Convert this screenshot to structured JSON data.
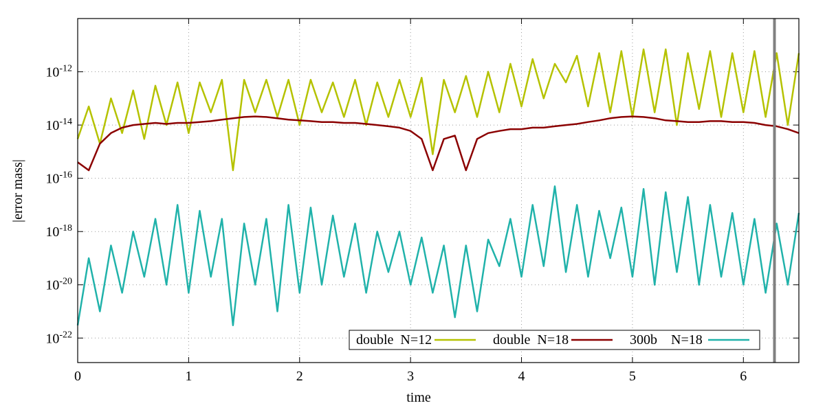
{
  "chart_data": {
    "type": "line",
    "xlabel": "time",
    "ylabel": "|error mass|",
    "log_y": true,
    "grid": true,
    "legend": "lower right",
    "xlim": [
      0,
      6.5
    ],
    "xticks": [
      0,
      1,
      2,
      3,
      4,
      5,
      6
    ],
    "ylim": [
      1.2e-23,
      1e-10
    ],
    "yticks": [
      {
        "value": 1e-12,
        "label": "10",
        "exponent": "-12"
      },
      {
        "value": 1e-14,
        "label": "10",
        "exponent": "-14"
      },
      {
        "value": 1e-16,
        "label": "10",
        "exponent": "-16"
      },
      {
        "value": 1e-18,
        "label": "10",
        "exponent": "-18"
      },
      {
        "value": 1e-20,
        "label": "10",
        "exponent": "-20"
      },
      {
        "value": 1e-22,
        "label": "10",
        "exponent": "-22"
      }
    ],
    "vline": {
      "x": 6.28,
      "color": "#808080"
    },
    "x": [
      0,
      0.1,
      0.2,
      0.3,
      0.4,
      0.5,
      0.6,
      0.7,
      0.8,
      0.9,
      1,
      1.1,
      1.2,
      1.3,
      1.4,
      1.5,
      1.6,
      1.7,
      1.8,
      1.9,
      2,
      2.1,
      2.2,
      2.3,
      2.4,
      2.5,
      2.6,
      2.7,
      2.8,
      2.9,
      3,
      3.1,
      3.2,
      3.3,
      3.4,
      3.5,
      3.6,
      3.7,
      3.8,
      3.9,
      4,
      4.1,
      4.2,
      4.3,
      4.4,
      4.5,
      4.6,
      4.7,
      4.8,
      4.9,
      5,
      5.1,
      5.2,
      5.3,
      5.4,
      5.5,
      5.6,
      5.7,
      5.8,
      5.9,
      6,
      6.1,
      6.2,
      6.3,
      6.4,
      6.5
    ],
    "series": [
      {
        "name": "double  N=12",
        "color": "#b5c200",
        "values": [
          3e-15,
          5e-14,
          2e-15,
          1e-13,
          5e-15,
          2e-13,
          3e-15,
          3e-13,
          1e-14,
          4e-13,
          5e-15,
          4e-13,
          3e-14,
          5e-13,
          2e-16,
          5e-13,
          3e-14,
          5e-13,
          2e-14,
          5e-13,
          1e-14,
          5e-13,
          3e-14,
          4e-13,
          2e-14,
          5e-13,
          1e-14,
          4e-13,
          2e-14,
          5e-13,
          2e-14,
          6e-13,
          8e-16,
          5e-13,
          3e-14,
          7e-13,
          2e-14,
          1e-12,
          3e-14,
          2e-12,
          5e-14,
          3e-12,
          1e-13,
          2e-12,
          4e-13,
          4e-12,
          5e-14,
          5e-12,
          3e-14,
          6e-12,
          2e-14,
          7e-12,
          3e-14,
          7e-12,
          1e-14,
          5e-12,
          4e-14,
          6e-12,
          2e-14,
          5e-12,
          3e-14,
          6e-12,
          2e-14,
          5e-12,
          1e-14,
          5e-12
        ]
      },
      {
        "name": "double  N=18",
        "color": "#8b0000",
        "values": [
          4e-16,
          2e-16,
          2e-15,
          5e-15,
          8e-15,
          1e-14,
          1.1e-14,
          1.2e-14,
          1.1e-14,
          1.2e-14,
          1.2e-14,
          1.3e-14,
          1.4e-14,
          1.6e-14,
          1.8e-14,
          2e-14,
          2.1e-14,
          2e-14,
          1.8e-14,
          1.6e-14,
          1.5e-14,
          1.4e-14,
          1.3e-14,
          1.3e-14,
          1.2e-14,
          1.2e-14,
          1.1e-14,
          1e-14,
          9e-15,
          8e-15,
          6e-15,
          3e-15,
          2e-16,
          3e-15,
          4e-15,
          2e-16,
          3e-15,
          5e-15,
          6e-15,
          7e-15,
          7e-15,
          8e-15,
          8e-15,
          9e-15,
          1e-14,
          1.1e-14,
          1.3e-14,
          1.5e-14,
          1.8e-14,
          2e-14,
          2.1e-14,
          2e-14,
          1.8e-14,
          1.5e-14,
          1.4e-14,
          1.3e-14,
          1.3e-14,
          1.4e-14,
          1.4e-14,
          1.3e-14,
          1.3e-14,
          1.2e-14,
          1e-14,
          9e-15,
          7e-15,
          5e-15
        ]
      },
      {
        "name": "300b    N=18",
        "color": "#20b2aa",
        "values": [
          3e-22,
          1e-19,
          1e-21,
          3e-19,
          5e-21,
          1e-18,
          2e-20,
          3e-18,
          1e-20,
          1e-17,
          5e-21,
          6e-18,
          2e-20,
          3e-18,
          3e-22,
          2e-18,
          1e-20,
          3e-18,
          1e-21,
          1e-17,
          5e-21,
          8e-18,
          1e-20,
          4e-18,
          2e-20,
          2e-18,
          5e-21,
          1e-18,
          3e-20,
          1e-18,
          1e-20,
          6e-19,
          5e-21,
          3e-19,
          6e-22,
          3e-19,
          1e-21,
          5e-19,
          5e-20,
          3e-18,
          2e-20,
          1e-17,
          5e-20,
          5e-17,
          3e-20,
          1e-17,
          2e-20,
          6e-18,
          1e-19,
          8e-18,
          2e-20,
          4e-17,
          1e-20,
          3e-17,
          3e-20,
          2e-17,
          1e-20,
          1e-17,
          2e-20,
          5e-18,
          1e-20,
          3e-18,
          5e-21,
          2e-18,
          1e-20,
          5e-18
        ]
      }
    ]
  }
}
